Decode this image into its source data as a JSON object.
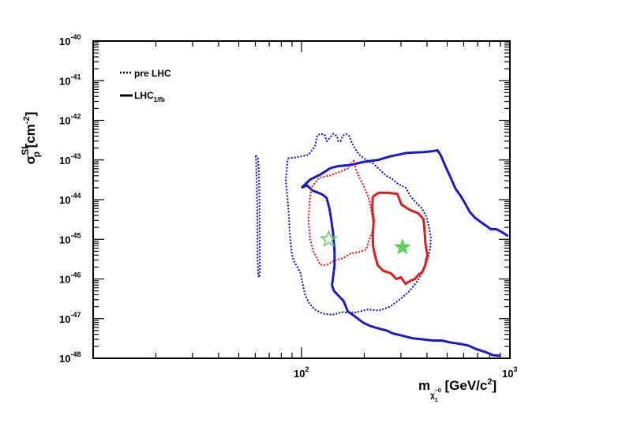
{
  "chart_data": {
    "type": "line",
    "xscale": "log",
    "yscale": "log",
    "xlim": [
      10,
      1000
    ],
    "ylim": [
      1e-48,
      1e-40
    ],
    "xlabel": "m_χ1^0 [GeV/c²]",
    "ylabel": "σ_p^SI [cm⁻²]",
    "x_ticks": [
      {
        "value": 100,
        "base": "10",
        "exp": "2"
      },
      {
        "value": 1000,
        "base": "10",
        "exp": "3"
      }
    ],
    "y_ticks": [
      {
        "value": 1e-40,
        "base": "10",
        "exp": "-40"
      },
      {
        "value": 1e-41,
        "base": "10",
        "exp": "-41"
      },
      {
        "value": 1e-42,
        "base": "10",
        "exp": "-42"
      },
      {
        "value": 1e-43,
        "base": "10",
        "exp": "-43"
      },
      {
        "value": 1e-44,
        "base": "10",
        "exp": "-44"
      },
      {
        "value": 1e-45,
        "base": "10",
        "exp": "-45"
      },
      {
        "value": 1e-46,
        "base": "10",
        "exp": "-46"
      },
      {
        "value": 1e-47,
        "base": "10",
        "exp": "-47"
      },
      {
        "value": 1e-48,
        "base": "10",
        "exp": "-48"
      }
    ],
    "legend": {
      "placement": "top-left",
      "entries": [
        {
          "label": "pre LHC",
          "style": "dotted"
        },
        {
          "label": "LHC",
          "subscript": "1/fb",
          "style": "solid"
        }
      ]
    },
    "series": [
      {
        "color": "#1a1acc",
        "style": "dotted",
        "width": 2.2,
        "points": [
          [
            60.2,
            1.3e-43
          ],
          [
            61.8,
            1.1e-43
          ],
          [
            62.5,
            5e-44
          ],
          [
            62.8,
            1e-44
          ],
          [
            63,
            1e-45
          ],
          [
            63.1,
            2.5e-46
          ],
          [
            62.8,
            1.1e-46
          ],
          [
            62,
            1.2e-46
          ],
          [
            61.6,
            3e-46
          ],
          [
            61.4,
            3e-45
          ],
          [
            61,
            3e-44
          ],
          [
            60.5,
            1e-43
          ],
          [
            60.2,
            1.3e-43
          ]
        ]
      },
      {
        "color": "#1a1acc",
        "style": "dotted",
        "width": 2.2,
        "points": [
          [
            86,
            1.1e-43
          ],
          [
            97,
            1.2e-43
          ],
          [
            108,
            1.35e-43
          ],
          [
            116,
            2.2e-43
          ],
          [
            119,
            4.2e-43
          ],
          [
            124,
            4.6e-43
          ],
          [
            129,
            4.3e-43
          ],
          [
            132,
            3e-43
          ],
          [
            136,
            3.5e-43
          ],
          [
            142,
            4.6e-43
          ],
          [
            148,
            4e-43
          ],
          [
            150,
            3e-43
          ],
          [
            154,
            3e-43
          ],
          [
            158,
            4.1e-43
          ],
          [
            164,
            4.5e-43
          ],
          [
            169,
            4.1e-43
          ],
          [
            175,
            2.6e-43
          ],
          [
            188,
            1.4e-43
          ],
          [
            205,
            1e-43
          ],
          [
            222,
            8e-44
          ],
          [
            238,
            5.6e-44
          ],
          [
            255,
            4e-44
          ],
          [
            271,
            3.4e-44
          ],
          [
            290,
            2.5e-44
          ],
          [
            316,
            2e-44
          ],
          [
            334,
            1.2e-44
          ],
          [
            358,
            8e-45
          ],
          [
            378,
            6e-45
          ],
          [
            396,
            3.8e-45
          ],
          [
            409,
            2.1e-45
          ],
          [
            417,
            1.1e-45
          ],
          [
            415,
            6e-46
          ],
          [
            405,
            3.5e-46
          ],
          [
            388,
            2e-46
          ],
          [
            375,
            1.3e-46
          ],
          [
            358,
            8.5e-47
          ],
          [
            330,
            5e-47
          ],
          [
            300,
            3.2e-47
          ],
          [
            266,
            2e-47
          ],
          [
            235,
            1.6e-47
          ],
          [
            208,
            1.7e-47
          ],
          [
            178,
            1.4e-47
          ],
          [
            157,
            1.45e-47
          ],
          [
            140,
            1.25e-47
          ],
          [
            126,
            1.35e-47
          ],
          [
            116,
            1.7e-47
          ],
          [
            109,
            2.4e-47
          ],
          [
            104,
            4e-47
          ],
          [
            101,
            8e-47
          ],
          [
            99,
            1.4e-46
          ],
          [
            96,
            1.9e-46
          ],
          [
            93,
            2.5e-46
          ],
          [
            90,
            4e-46
          ],
          [
            88,
            1.2e-45
          ],
          [
            87,
            4e-45
          ],
          [
            85.5,
            1.2e-44
          ],
          [
            84,
            3.2e-44
          ],
          [
            86,
            1.1e-43
          ]
        ]
      },
      {
        "color": "#1a1acc",
        "style": "solid",
        "width": 3,
        "points": [
          [
            100,
            2e-44
          ],
          [
            110,
            3.2e-44
          ],
          [
            124,
            4.4e-44
          ],
          [
            137,
            6.2e-44
          ],
          [
            150,
            7e-44
          ],
          [
            172,
            7.5e-44
          ],
          [
            200,
            9e-44
          ],
          [
            232,
            1e-43
          ],
          [
            268,
            1.25e-43
          ],
          [
            290,
            1.35e-43
          ],
          [
            318,
            1.5e-43
          ],
          [
            346,
            1.55e-43
          ],
          [
            380,
            1.57e-43
          ],
          [
            420,
            1.65e-43
          ],
          [
            450,
            1.75e-43
          ],
          [
            466,
            1.3e-43
          ],
          [
            490,
            7e-44
          ],
          [
            518,
            3.7e-44
          ],
          [
            548,
            1.9e-44
          ],
          [
            580,
            1.25e-44
          ],
          [
            610,
            8e-45
          ],
          [
            640,
            5e-45
          ],
          [
            680,
            3.5e-45
          ],
          [
            720,
            2.8e-45
          ],
          [
            760,
            2.3e-45
          ],
          [
            810,
            1.8e-45
          ],
          [
            860,
            1.8e-45
          ],
          [
            920,
            1.5e-45
          ],
          [
            980,
            1.2e-45
          ]
        ]
      },
      {
        "color": "#1a1acc",
        "style": "solid",
        "width": 3,
        "points": [
          [
            100,
            2e-44
          ],
          [
            106,
            2.3e-44
          ],
          [
            113,
            1.7e-44
          ],
          [
            120,
            1.5e-44
          ],
          [
            126,
            1.35e-44
          ],
          [
            132,
            1.1e-44
          ],
          [
            136,
            6e-45
          ],
          [
            139,
            3e-45
          ],
          [
            142,
            1.3e-45
          ],
          [
            144,
            5e-46
          ],
          [
            144,
            2.2e-46
          ],
          [
            142,
            1.2e-46
          ],
          [
            140,
            7e-47
          ],
          [
            143,
            5e-47
          ],
          [
            149,
            4e-47
          ],
          [
            159,
            2.8e-47
          ],
          [
            167,
            1.5e-47
          ],
          [
            178,
            1.2e-47
          ],
          [
            197,
            8e-48
          ],
          [
            214,
            6.5e-48
          ],
          [
            239,
            5.5e-48
          ],
          [
            257,
            5e-48
          ],
          [
            272,
            4.3e-48
          ],
          [
            300,
            3.8e-48
          ],
          [
            340,
            3.2e-48
          ],
          [
            380,
            3e-48
          ],
          [
            430,
            2.8e-48
          ],
          [
            470,
            2.8e-48
          ],
          [
            520,
            2.5e-48
          ],
          [
            580,
            2.3e-48
          ],
          [
            630,
            2.1e-48
          ],
          [
            690,
            1.7e-48
          ],
          [
            760,
            1.45e-48
          ],
          [
            830,
            1.2e-48
          ],
          [
            900,
            1.15e-48
          ]
        ]
      },
      {
        "color": "#e41a1a",
        "style": "dotted",
        "width": 2.2,
        "points": [
          [
            112,
            2.1e-44
          ],
          [
            122,
            3.6e-44
          ],
          [
            138,
            4.1e-44
          ],
          [
            155,
            5.2e-44
          ],
          [
            168,
            6.2e-44
          ],
          [
            173,
            8e-44
          ],
          [
            178,
            9.5e-44
          ],
          [
            183,
            5.5e-44
          ],
          [
            190,
            3.5e-44
          ],
          [
            199,
            2.2e-44
          ],
          [
            210,
            1.1e-44
          ],
          [
            215,
            6e-45
          ],
          [
            220,
            3.2e-45
          ],
          [
            222,
            2e-45
          ],
          [
            216,
            1.3e-45
          ],
          [
            210,
            9e-46
          ],
          [
            204,
            5.5e-46
          ],
          [
            190,
            4.8e-46
          ],
          [
            172,
            4.4e-46
          ],
          [
            158,
            3.3e-46
          ],
          [
            145,
            3e-46
          ],
          [
            131,
            2.2e-46
          ],
          [
            123,
            2.3e-46
          ],
          [
            118,
            3.5e-46
          ],
          [
            114,
            5e-46
          ],
          [
            110,
            1e-45
          ],
          [
            108,
            3.2e-45
          ],
          [
            109,
            7e-45
          ],
          [
            110,
            1.2e-44
          ],
          [
            112,
            2.1e-44
          ]
        ]
      },
      {
        "color": "#e41a1a",
        "style": "solid",
        "width": 3,
        "points": [
          [
            220,
            1.2e-44
          ],
          [
            235,
            1.5e-44
          ],
          [
            260,
            1.5e-44
          ],
          [
            288,
            1.4e-44
          ],
          [
            302,
            7.5e-45
          ],
          [
            331,
            5.5e-45
          ],
          [
            364,
            4.5e-45
          ],
          [
            385,
            3.2e-45
          ],
          [
            390,
            1.5e-45
          ],
          [
            393,
            8e-46
          ],
          [
            402,
            4e-46
          ],
          [
            392,
            2.2e-46
          ],
          [
            380,
            1.5e-46
          ],
          [
            365,
            1.3e-46
          ],
          [
            350,
            1e-46
          ],
          [
            333,
            9e-47
          ],
          [
            316,
            7.5e-47
          ],
          [
            300,
            1.1e-46
          ],
          [
            285,
            1e-46
          ],
          [
            268,
            1.4e-46
          ],
          [
            247,
            1.6e-46
          ],
          [
            232,
            2.2e-46
          ],
          [
            225,
            4e-46
          ],
          [
            220,
            7e-46
          ],
          [
            220,
            1.5e-45
          ],
          [
            222,
            3e-45
          ],
          [
            218,
            6e-45
          ],
          [
            220,
            1.2e-44
          ]
        ]
      }
    ],
    "markers": [
      {
        "x": 135,
        "y": 1e-45,
        "symbol": "star",
        "filled": false,
        "color": "#5bd35b"
      },
      {
        "x": 305,
        "y": 6.3e-46,
        "symbol": "star",
        "filled": true,
        "color": "#5bd35b"
      }
    ]
  }
}
